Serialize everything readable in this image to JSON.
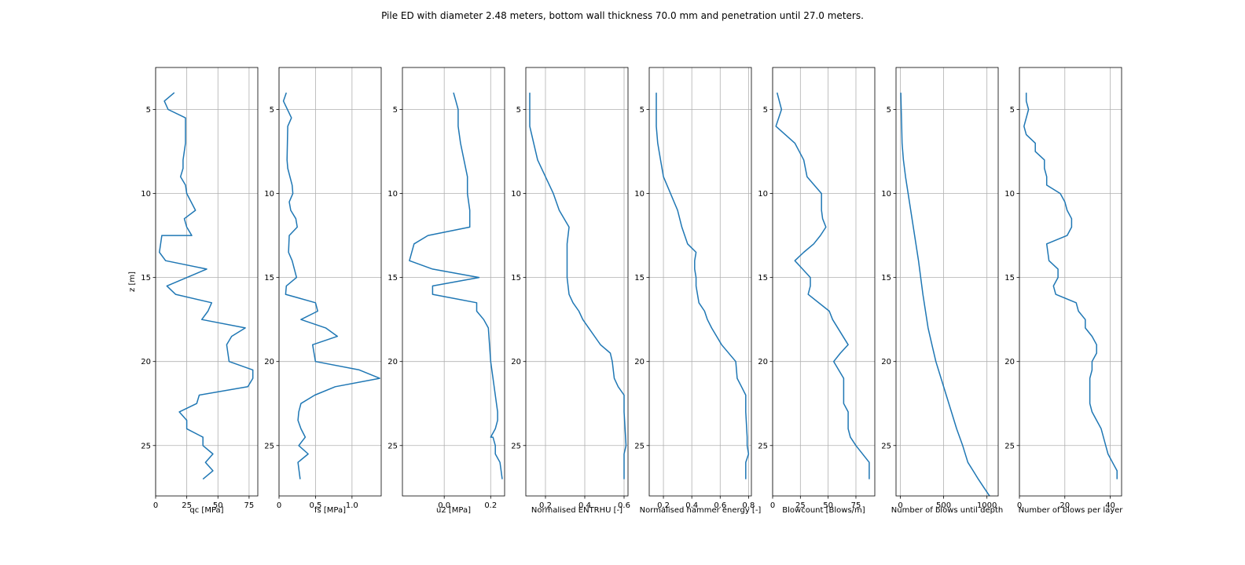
{
  "title": "Pile ED with diameter 2.48 meters, bottom wall thickness 70.0 mm and penetration until 27.0 meters.",
  "colors": {
    "series": "#1f77b4",
    "grid": "#b0b0b0",
    "axes": "#000000"
  },
  "chart_data": [
    {
      "type": "line",
      "xlabel": "qc [MPa]",
      "ylabel": "z [m]",
      "xlim": [
        0,
        82
      ],
      "ylim": [
        28,
        2.5
      ],
      "xticks": [
        0,
        25,
        50,
        75
      ],
      "xtick_labels": [
        "0",
        "25",
        "50",
        "75"
      ],
      "yticks": [
        5,
        10,
        15,
        20,
        25
      ],
      "ytick_labels": [
        "5",
        "10",
        "15",
        "20",
        "25"
      ],
      "grid": true,
      "series": [
        {
          "x": [
            15,
            7,
            10,
            24,
            24,
            22,
            22,
            20,
            24,
            25,
            32,
            23,
            25,
            29,
            5,
            3,
            8,
            41,
            9,
            16,
            45,
            42,
            37,
            72,
            61,
            57,
            59,
            78,
            78,
            74,
            35,
            33,
            19,
            25,
            25,
            38,
            38,
            46,
            40,
            46,
            38
          ],
          "y": [
            4,
            4.5,
            5,
            5.5,
            7,
            8,
            8.5,
            9,
            9.5,
            10,
            11,
            11.5,
            12,
            12.5,
            12.5,
            13.5,
            14,
            14.5,
            15.5,
            16,
            16.5,
            17,
            17.5,
            18,
            18.5,
            19,
            20,
            20.5,
            21,
            21.5,
            22,
            22.5,
            23,
            23.5,
            24,
            24.5,
            25,
            25.5,
            26,
            26.5,
            27
          ]
        }
      ]
    },
    {
      "type": "line",
      "xlabel": "fs [MPa]",
      "ylabel": "",
      "xlim": [
        0,
        1.4
      ],
      "ylim": [
        28,
        2.5
      ],
      "xticks": [
        0,
        0.5,
        1
      ],
      "xtick_labels": [
        "0",
        "0.5",
        "1.0"
      ],
      "yticks": [
        5,
        10,
        15,
        20,
        25
      ],
      "ytick_labels": [
        "5",
        "10",
        "15",
        "20",
        "25"
      ],
      "grid": true,
      "series": [
        {
          "x": [
            0.1,
            0.06,
            0.17,
            0.12,
            0.11,
            0.12,
            0.18,
            0.19,
            0.14,
            0.16,
            0.23,
            0.25,
            0.14,
            0.13,
            0.18,
            0.24,
            0.1,
            0.09,
            0.5,
            0.53,
            0.3,
            0.64,
            0.8,
            0.46,
            0.5,
            1.1,
            1.38,
            0.77,
            0.49,
            0.3,
            0.27,
            0.26,
            0.3,
            0.36,
            0.27,
            0.4,
            0.26,
            0.29
          ],
          "y": [
            4,
            4.5,
            5.5,
            6,
            8,
            8.5,
            9.5,
            10,
            10.5,
            11,
            11.5,
            12,
            12.5,
            13.5,
            14,
            15,
            15.5,
            16,
            16.5,
            17,
            17.5,
            18,
            18.5,
            19,
            20,
            20.5,
            21,
            21.5,
            22,
            22.5,
            23,
            23.5,
            24,
            24.5,
            25,
            25.5,
            26,
            27
          ]
        }
      ]
    },
    {
      "type": "line",
      "xlabel": "u2 [MPa]",
      "ylabel": "",
      "xlim": [
        -0.18,
        0.26
      ],
      "ylim": [
        28,
        2.5
      ],
      "xticks": [
        0,
        0.2
      ],
      "xtick_labels": [
        "0.0",
        "0.2"
      ],
      "yticks": [
        5,
        10,
        15,
        20,
        25
      ],
      "ytick_labels": [
        "5",
        "10",
        "15",
        "20",
        "25"
      ],
      "grid": true,
      "series": [
        {
          "x": [
            0.04,
            0.05,
            0.06,
            0.06,
            0.07,
            0.1,
            0.1,
            0.11,
            0.11,
            -0.07,
            -0.13,
            -0.15,
            -0.05,
            0.15,
            -0.05,
            -0.05,
            0.14,
            0.14,
            0.17,
            0.19,
            0.2,
            0.23,
            0.23,
            0.22,
            0.2,
            0.21,
            0.22,
            0.22,
            0.24,
            0.25
          ],
          "y": [
            4,
            4.5,
            5,
            6,
            7,
            9,
            10,
            11,
            12,
            12.5,
            13,
            14,
            14.5,
            15,
            15.5,
            16,
            16.5,
            17,
            17.5,
            18,
            20,
            23,
            23.5,
            24,
            24.5,
            24.5,
            25,
            25.5,
            26,
            27
          ]
        }
      ]
    },
    {
      "type": "line",
      "xlabel": "Normalised ENTRHU [-]",
      "ylabel": "",
      "xlim": [
        0.1,
        0.62
      ],
      "ylim": [
        28,
        2.5
      ],
      "xticks": [
        0.2,
        0.4,
        0.6
      ],
      "xtick_labels": [
        "0.2",
        "0.4",
        "0.6"
      ],
      "yticks": [
        5,
        10,
        15,
        20,
        25
      ],
      "ytick_labels": [
        "5",
        "10",
        "15",
        "20",
        "25"
      ],
      "grid": true,
      "series": [
        {
          "x": [
            0.12,
            0.12,
            0.12,
            0.14,
            0.16,
            0.2,
            0.24,
            0.27,
            0.32,
            0.31,
            0.31,
            0.31,
            0.32,
            0.34,
            0.37,
            0.39,
            0.42,
            0.48,
            0.53,
            0.54,
            0.55,
            0.57,
            0.6,
            0.6,
            0.61,
            0.6,
            0.6,
            0.6
          ],
          "y": [
            4,
            5,
            6,
            7,
            8,
            9,
            10,
            11,
            12,
            13,
            14,
            15,
            16,
            16.5,
            17,
            17.5,
            18,
            19,
            19.5,
            20,
            21,
            21.5,
            22,
            23,
            25,
            25.5,
            26,
            27
          ]
        }
      ]
    },
    {
      "type": "line",
      "xlabel": "Normalised hammer energy [-]",
      "ylabel": "",
      "xlim": [
        0.1,
        0.82
      ],
      "ylim": [
        28,
        2.5
      ],
      "xticks": [
        0.2,
        0.4,
        0.6,
        0.8
      ],
      "xtick_labels": [
        "0.2",
        "0.4",
        "0.6",
        "0.8"
      ],
      "yticks": [
        5,
        10,
        15,
        20,
        25
      ],
      "ytick_labels": [
        "5",
        "10",
        "15",
        "20",
        "25"
      ],
      "grid": true,
      "series": [
        {
          "x": [
            0.15,
            0.15,
            0.15,
            0.16,
            0.18,
            0.2,
            0.25,
            0.3,
            0.33,
            0.37,
            0.43,
            0.42,
            0.42,
            0.43,
            0.43,
            0.44,
            0.45,
            0.49,
            0.51,
            0.54,
            0.61,
            0.71,
            0.72,
            0.75,
            0.78,
            0.78,
            0.79,
            0.79,
            0.8,
            0.78,
            0.78
          ],
          "y": [
            4,
            5,
            6,
            7,
            8,
            9,
            10,
            11,
            12,
            13,
            13.5,
            14,
            14.5,
            15,
            15.5,
            16,
            16.5,
            17,
            17.5,
            18,
            19,
            20,
            21,
            21.5,
            22,
            23,
            24.5,
            25,
            25.5,
            26,
            27
          ]
        }
      ]
    },
    {
      "type": "line",
      "xlabel": "Blowcount [Blows/m]",
      "ylabel": "",
      "xlim": [
        0,
        92
      ],
      "ylim": [
        28,
        2.5
      ],
      "xticks": [
        0,
        25,
        50,
        75
      ],
      "xtick_labels": [
        "0",
        "25",
        "50",
        "75"
      ],
      "yticks": [
        5,
        10,
        15,
        20,
        25
      ],
      "ytick_labels": [
        "5",
        "10",
        "15",
        "20",
        "25"
      ],
      "grid": true,
      "series": [
        {
          "x": [
            4,
            8,
            3,
            20,
            28,
            31,
            44,
            44,
            45,
            48,
            43,
            37,
            28,
            20,
            34,
            34,
            32,
            51,
            54,
            68,
            61,
            55,
            64,
            64,
            64,
            68,
            68,
            70,
            75,
            87,
            87
          ],
          "y": [
            4,
            5,
            6,
            7,
            8,
            9,
            10,
            11,
            11.5,
            12,
            12.5,
            13,
            13.5,
            14,
            15,
            15.5,
            16,
            17,
            17.5,
            19,
            19.5,
            20,
            21,
            22,
            22.5,
            23,
            24,
            24.5,
            25,
            26,
            27
          ]
        }
      ]
    },
    {
      "type": "line",
      "xlabel": "Number of blows until depth",
      "ylabel": "",
      "xlim": [
        -50,
        1130
      ],
      "ylim": [
        28,
        2.5
      ],
      "xticks": [
        0,
        500,
        1000
      ],
      "xtick_labels": [
        "0",
        "500",
        "1000"
      ],
      "yticks": [
        5,
        10,
        15,
        20,
        25
      ],
      "ytick_labels": [
        "5",
        "10",
        "15",
        "20",
        "25"
      ],
      "grid": true,
      "series": [
        {
          "x": [
            5,
            10,
            15,
            20,
            35,
            60,
            90,
            120,
            150,
            180,
            210,
            235,
            260,
            290,
            320,
            365,
            410,
            470,
            530,
            590,
            650,
            720,
            780,
            840,
            900,
            965,
            1030,
            1100
          ],
          "y": [
            4,
            5,
            6,
            7,
            8,
            9,
            10,
            11,
            12,
            13,
            14,
            15,
            16,
            17,
            18,
            19,
            20,
            21,
            22,
            23,
            24,
            25,
            26,
            26.5,
            27,
            27.5,
            28,
            28.4
          ]
        }
      ]
    },
    {
      "type": "line",
      "xlabel": "Number of blows per layer",
      "ylabel": "",
      "xlim": [
        0,
        45
      ],
      "ylim": [
        28,
        2.5
      ],
      "xticks": [
        0,
        20,
        40
      ],
      "xtick_labels": [
        "0",
        "20",
        "40"
      ],
      "yticks": [
        5,
        10,
        15,
        20,
        25
      ],
      "ytick_labels": [
        "5",
        "10",
        "15",
        "20",
        "25"
      ],
      "grid": true,
      "series": [
        {
          "x": [
            3,
            3,
            4,
            3,
            2,
            3,
            7,
            7,
            11,
            11,
            12,
            12,
            18,
            20,
            21,
            23,
            23,
            21,
            12,
            13,
            17,
            17,
            15,
            16,
            25,
            26,
            29,
            29,
            32,
            34,
            34,
            32,
            32,
            31,
            31,
            31,
            32,
            34,
            36,
            38,
            39,
            41,
            43,
            43
          ],
          "y": [
            4,
            4.5,
            5,
            5.5,
            6,
            6.5,
            7,
            7.5,
            8,
            8.5,
            9,
            9.5,
            10,
            10.5,
            11,
            11.5,
            12,
            12.5,
            13,
            14,
            14.5,
            15,
            15.5,
            16,
            16.5,
            17,
            17.5,
            18,
            18.5,
            19,
            19.5,
            20,
            20.5,
            21,
            22,
            22.5,
            23,
            23.5,
            24,
            25,
            25.5,
            26,
            26.5,
            27
          ]
        }
      ]
    }
  ]
}
